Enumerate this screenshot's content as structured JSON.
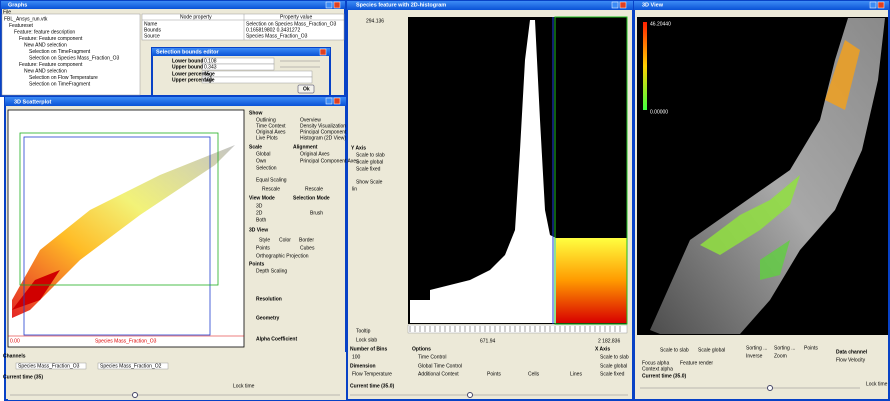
{
  "graphs": {
    "title": "Graphs",
    "menu": "File",
    "tree": [
      "FBL_Ansys_run.vtk",
      "Featureset",
      "Feature: feature description",
      "Feature: Feature component",
      "New AND selection",
      "Selection on TimeFragment",
      "Selection on Species Mass_Fraction_O3",
      "Feature: Feature component",
      "New AND selection",
      "Selection on Flow Temperature",
      "Selection on TimeFragment"
    ],
    "table": {
      "headers": [
        "Node property",
        "Property value"
      ],
      "rows": [
        [
          "Name",
          "Selection on Species Mass_Fraction_O3"
        ],
        [
          "Bounds",
          "0.165819802 0.3431272"
        ],
        [
          "Source",
          "Species Mass_Fraction_O3"
        ]
      ]
    }
  },
  "bounds_dialog": {
    "title": "Selection bounds editor",
    "fields": [
      [
        "Lower bound",
        "0.108"
      ],
      [
        "Upper bound",
        "0.343"
      ],
      [
        "Lower percentage",
        "65"
      ],
      [
        "Upper percentage",
        "100"
      ]
    ],
    "button": "Ok"
  },
  "scatter": {
    "title": "3D Scatterplot",
    "axis_label": "Species Mass_Fraction_O3",
    "axis_min": "0.00",
    "controls": [
      "Show",
      "Outlining",
      "Time Context",
      "Original Axes",
      "Live Plots",
      "Overview",
      "Density Visualization",
      "Principal Component",
      "Histogram (2D View)",
      "Scale",
      "Global",
      "Own",
      "Selection",
      "Equal Scaling",
      "Rescale",
      "Alignment",
      "Original Axes",
      "Principal Component Axes",
      "Rescale",
      "View Mode",
      "3D",
      "2D",
      "Both",
      "Selection Mode",
      "Brush",
      "3D View",
      "Style",
      "Color",
      "Border",
      "Points",
      "Cubes",
      "Orthographic Projection",
      "Points",
      "Depth Scaling",
      "Resolution",
      "Geometry",
      "Alpha Coefficient"
    ],
    "channels": "Channels",
    "channel_1": "Species Mass_Fraction_O3",
    "channel_2": "Species Mass_Fraction_O2",
    "time": "Current time (35)",
    "lock": "Lock time"
  },
  "histogram": {
    "title": "Species feature with 2D-histogram",
    "top_value": "294.136",
    "x_min": "671.94",
    "x_max": "2 182.836",
    "controls": [
      "Y Axis",
      "Scale to slab",
      "Scale global",
      "Scale fixed",
      "Show Scale",
      "lin",
      "Tooltip",
      "Lock slab",
      "Number of Bins",
      "100",
      "Dimension",
      "Flow Temperature",
      "Options",
      "Time Control",
      "Global Time Control",
      "Additional Context",
      "Points",
      "Cells",
      "Lines",
      "X Axis",
      "Scale to slab",
      "Scale global",
      "Scale fixed",
      "Current time (35.0)"
    ]
  },
  "view3d": {
    "title": "3D View",
    "legend_max": "46.20440",
    "legend_min": "0.00000",
    "controls": [
      "Scale to slab",
      "Scale global",
      "Sorting ...",
      "Sorting ...",
      "Points",
      "Inverse",
      "Zoom",
      "Data channel",
      "Flow Velocity",
      "Focus alpha",
      "Feature render",
      "Context alpha",
      "Current time (35.0)",
      "Lock time"
    ]
  }
}
